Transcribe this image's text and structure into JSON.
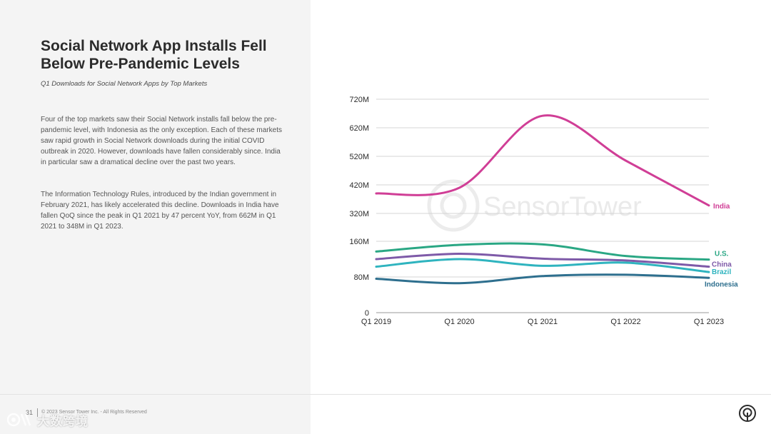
{
  "header": {
    "title": "Social Network App Installs Fell Below Pre-Pandemic Levels",
    "subtitle": "Q1 Downloads for Social Network Apps by Top Markets"
  },
  "body": {
    "paragraph1": "Four of the top markets saw their Social Network installs fall below the pre-pandemic level, with Indonesia as the only exception. Each of these markets saw rapid growth in Social Network downloads during the initial COVID outbreak in 2020. However, downloads have fallen considerably since. India in particular saw a dramatical decline over the past two years.",
    "paragraph2": "The Information Technology Rules, introduced by the Indian government in February 2021, has likely accelerated this decline. Downloads in India have fallen QoQ since the peak in Q1 2021 by 47 percent YoY, from 662M in Q1 2021 to 348M in Q1 2023."
  },
  "footer": {
    "page_number": "31",
    "copyright": "© 2023 Sensor Tower Inc. - All Rights Reserved",
    "watermark": "大数跨境"
  },
  "chart_watermark": "SensorTower",
  "colors": {
    "India": "#d03e96",
    "U.S.": "#2aa784",
    "China": "#7e5aa8",
    "Brazil": "#2fb4bf",
    "Indonesia": "#2e6f8e",
    "grid": "#d4d4d4"
  },
  "chart_data": {
    "type": "line",
    "title": "Q1 Downloads for Social Network Apps by Top Markets",
    "categories": [
      "Q1 2019",
      "Q1 2020",
      "Q1 2021",
      "Q1 2022",
      "Q1 2023"
    ],
    "y_ticks": [
      {
        "value": 0,
        "label": "0"
      },
      {
        "value": 80,
        "label": "80M"
      },
      {
        "value": 160,
        "label": "160M"
      },
      {
        "value": 320,
        "label": "320M"
      },
      {
        "value": 420,
        "label": "420M"
      },
      {
        "value": 520,
        "label": "520M"
      },
      {
        "value": 620,
        "label": "620M"
      },
      {
        "value": 720,
        "label": "720M"
      }
    ],
    "series": [
      {
        "name": "India",
        "values": [
          390,
          410,
          662,
          505,
          348
        ]
      },
      {
        "name": "U.S.",
        "values": [
          137,
          152,
          153,
          127,
          119
        ]
      },
      {
        "name": "China",
        "values": [
          120,
          132,
          121,
          117,
          103
        ]
      },
      {
        "name": "Brazil",
        "values": [
          103,
          120,
          105,
          112,
          91
        ]
      },
      {
        "name": "Indonesia",
        "values": [
          76,
          66,
          82,
          85,
          78
        ]
      }
    ]
  }
}
